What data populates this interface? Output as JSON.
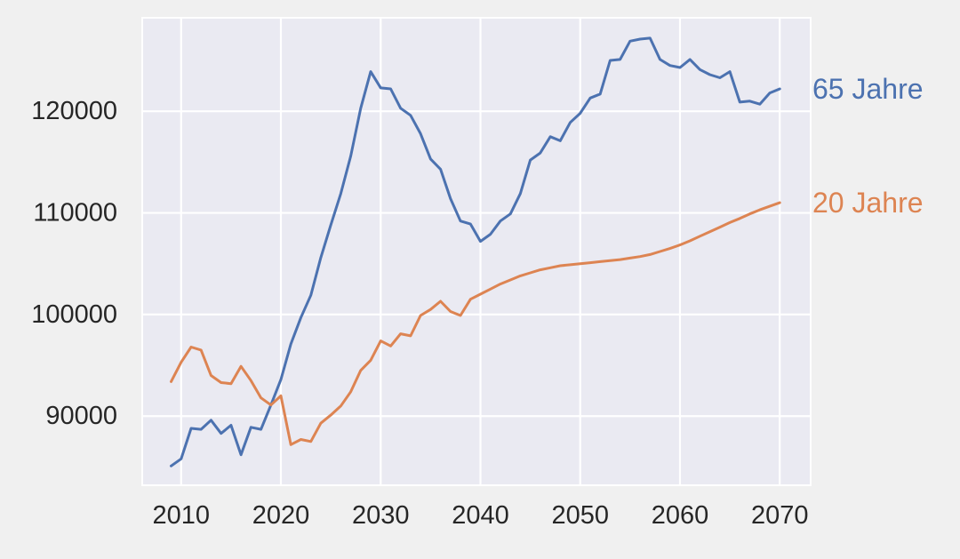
{
  "chart_data": {
    "type": "line",
    "title": "",
    "xlabel": "",
    "ylabel": "",
    "xlim": [
      2006.1,
      2073.1
    ],
    "ylim": [
      83200,
      129200
    ],
    "xticks": [
      2010,
      2020,
      2030,
      2040,
      2050,
      2060,
      2070
    ],
    "xtick_labels": [
      "2010",
      "2020",
      "2030",
      "2040",
      "2050",
      "2060",
      "2070"
    ],
    "yticks": [
      90000,
      100000,
      110000,
      120000
    ],
    "ytick_labels": [
      "90000",
      "100000",
      "110000",
      "120000"
    ],
    "grid": true,
    "legend": "direct labels at right end of each line",
    "x": [
      2009,
      2010,
      2011,
      2012,
      2013,
      2014,
      2015,
      2016,
      2017,
      2018,
      2019,
      2020,
      2021,
      2022,
      2023,
      2024,
      2025,
      2026,
      2027,
      2028,
      2029,
      2030,
      2031,
      2032,
      2033,
      2034,
      2035,
      2036,
      2037,
      2038,
      2039,
      2040,
      2041,
      2042,
      2043,
      2044,
      2045,
      2046,
      2047,
      2048,
      2049,
      2050,
      2051,
      2052,
      2053,
      2054,
      2055,
      2056,
      2057,
      2058,
      2059,
      2060,
      2061,
      2062,
      2063,
      2064,
      2065,
      2066,
      2067,
      2068,
      2069,
      2070
    ],
    "series": [
      {
        "name": "65 Jahre",
        "color": "#4c72b0",
        "values": [
          85100,
          85800,
          88800,
          88700,
          89600,
          88300,
          89100,
          86200,
          88900,
          88700,
          91100,
          93600,
          97100,
          99700,
          101900,
          105600,
          108800,
          111900,
          115600,
          120300,
          123900,
          122300,
          122200,
          120300,
          119600,
          117800,
          115300,
          114300,
          111400,
          109200,
          108900,
          107200,
          107900,
          109200,
          109900,
          111900,
          115200,
          115900,
          117500,
          117100,
          118900,
          119800,
          121300,
          121700,
          125000,
          125100,
          126900,
          127100,
          127200,
          125100,
          124500,
          124300,
          125100,
          124100,
          123600,
          123300,
          123900,
          120900,
          121000,
          120700,
          121800,
          122200
        ]
      },
      {
        "name": "20 Jahre",
        "color": "#dd8452",
        "values": [
          93400,
          95300,
          96800,
          96500,
          94000,
          93300,
          93200,
          94900,
          93500,
          91800,
          91100,
          92000,
          87200,
          87700,
          87500,
          89300,
          90100,
          91000,
          92400,
          94500,
          95500,
          97400,
          96900,
          98100,
          97900,
          99900,
          100500,
          101300,
          100300,
          99900,
          101500,
          102000,
          102500,
          103000,
          103400,
          103800,
          104100,
          104400,
          104600,
          104800,
          104900,
          105000,
          105100,
          105200,
          105300,
          105400,
          105550,
          105700,
          105900,
          106200,
          106500,
          106850,
          107250,
          107700,
          108150,
          108600,
          109050,
          109450,
          109900,
          110300,
          110650,
          111000
        ]
      }
    ]
  },
  "style": {
    "page_background": "#f0f0f0",
    "plot_background": "#eaeaf2",
    "grid_color": "#ffffff",
    "text_color": "#262626"
  }
}
